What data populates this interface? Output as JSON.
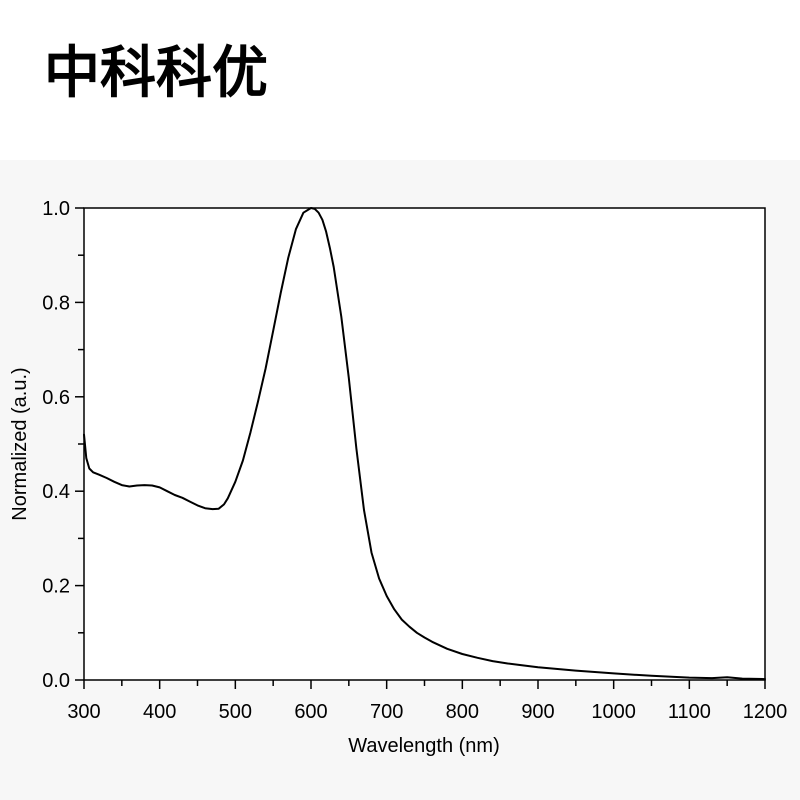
{
  "header": {
    "brand_text": "中科科优"
  },
  "chart_data": {
    "type": "line",
    "title": "",
    "xlabel": "Wavelength (nm)",
    "ylabel": "Normalized (a.u.)",
    "xlim": [
      300,
      1200
    ],
    "ylim": [
      0.0,
      1.0
    ],
    "x_ticks": [
      300,
      400,
      500,
      600,
      700,
      800,
      900,
      1000,
      1100,
      1200
    ],
    "x_tick_labels": [
      "300",
      "400",
      "500",
      "600",
      "700",
      "800",
      "900",
      "1000",
      "1100",
      "1200"
    ],
    "y_ticks": [
      0.0,
      0.2,
      0.4,
      0.6,
      0.8,
      1.0
    ],
    "y_tick_labels": [
      "0.0",
      "0.2",
      "0.4",
      "0.6",
      "0.8",
      "1.0"
    ],
    "grid": false,
    "legend": "none",
    "line_color": "#000000",
    "series": [
      {
        "x": [
          300,
          303,
          307,
          312,
          320,
          330,
          340,
          350,
          360,
          370,
          380,
          390,
          400,
          410,
          420,
          430,
          440,
          450,
          460,
          470,
          478,
          485,
          490,
          500,
          510,
          520,
          530,
          540,
          550,
          560,
          570,
          580,
          590,
          600,
          605,
          610,
          615,
          620,
          625,
          630,
          640,
          650,
          660,
          670,
          680,
          690,
          700,
          710,
          720,
          730,
          740,
          750,
          760,
          780,
          800,
          820,
          840,
          860,
          880,
          900,
          950,
          1000,
          1050,
          1100,
          1130,
          1150,
          1170,
          1200
        ],
        "y": [
          0.52,
          0.47,
          0.448,
          0.44,
          0.435,
          0.428,
          0.42,
          0.413,
          0.41,
          0.412,
          0.413,
          0.412,
          0.408,
          0.4,
          0.392,
          0.386,
          0.378,
          0.37,
          0.364,
          0.362,
          0.363,
          0.372,
          0.385,
          0.42,
          0.465,
          0.525,
          0.59,
          0.66,
          0.74,
          0.82,
          0.895,
          0.955,
          0.99,
          1.0,
          0.998,
          0.99,
          0.975,
          0.95,
          0.915,
          0.875,
          0.77,
          0.64,
          0.49,
          0.36,
          0.27,
          0.215,
          0.178,
          0.15,
          0.128,
          0.113,
          0.1,
          0.09,
          0.081,
          0.066,
          0.055,
          0.047,
          0.04,
          0.035,
          0.031,
          0.027,
          0.02,
          0.014,
          0.009,
          0.005,
          0.004,
          0.006,
          0.003,
          0.002
        ]
      }
    ]
  }
}
